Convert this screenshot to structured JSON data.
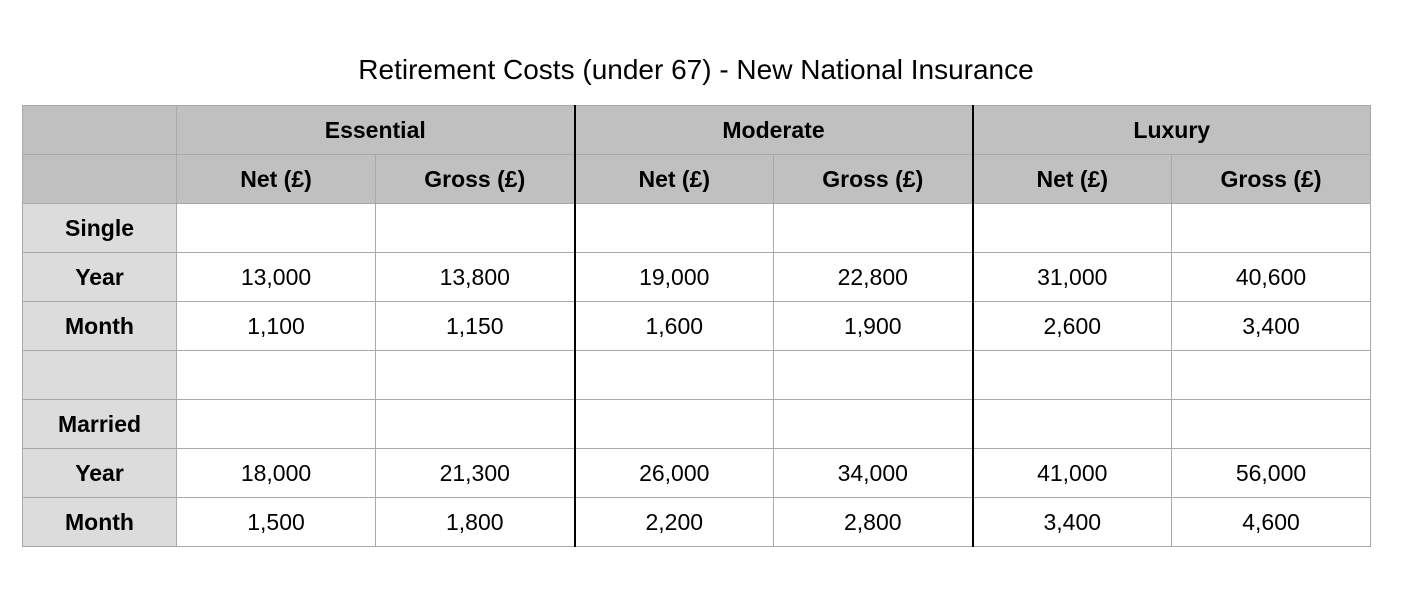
{
  "title": "Retirement Costs (under 67) - New National Insurance",
  "groups": [
    "Essential",
    "Moderate",
    "Luxury"
  ],
  "subheaders": [
    "Net (£)",
    "Gross (£)",
    "Net (£)",
    "Gross (£)",
    "Net (£)",
    "Gross (£)"
  ],
  "rows": [
    {
      "label": "Single",
      "values": [
        "",
        "",
        "",
        "",
        "",
        ""
      ]
    },
    {
      "label": "Year",
      "values": [
        "13,000",
        "13,800",
        "19,000",
        "22,800",
        "31,000",
        "40,600"
      ]
    },
    {
      "label": "Month",
      "values": [
        "1,100",
        "1,150",
        "1,600",
        "1,900",
        "2,600",
        "3,400"
      ]
    },
    {
      "label": "",
      "values": [
        "",
        "",
        "",
        "",
        "",
        ""
      ]
    },
    {
      "label": "Married",
      "values": [
        "",
        "",
        "",
        "",
        "",
        ""
      ]
    },
    {
      "label": "Year",
      "values": [
        "18,000",
        "21,300",
        "26,000",
        "34,000",
        "41,000",
        "56,000"
      ]
    },
    {
      "label": "Month",
      "values": [
        "1,500",
        "1,800",
        "2,200",
        "2,800",
        "3,400",
        "4,600"
      ]
    }
  ]
}
